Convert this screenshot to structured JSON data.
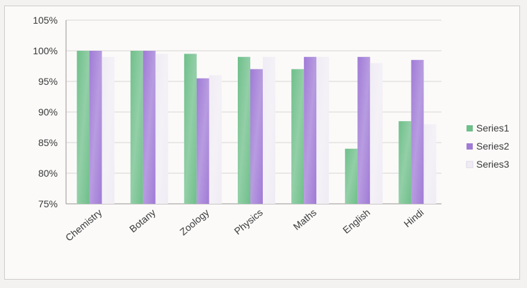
{
  "chart_data": {
    "type": "bar",
    "categories": [
      "Chemistry",
      "Botany",
      "Zoology",
      "Physics",
      "Maths",
      "English",
      "Hindi"
    ],
    "series": [
      {
        "name": "Series1",
        "values": [
          100,
          100,
          99.5,
          99,
          97,
          84,
          88.5
        ],
        "color": "#6fbf8a"
      },
      {
        "name": "Series2",
        "values": [
          100,
          100,
          95.5,
          97,
          99,
          99,
          98.5
        ],
        "color": "#a07bd6"
      },
      {
        "name": "Series3",
        "values": [
          99,
          99.5,
          96,
          99,
          99,
          98,
          88
        ],
        "color": "#f0ecf4"
      }
    ],
    "ylim": [
      75,
      105
    ],
    "yticks": [
      "105%",
      "100%",
      "95%",
      "90%",
      "85%",
      "80%",
      "75%"
    ],
    "ytick_values": [
      105,
      100,
      95,
      90,
      85,
      80,
      75
    ],
    "grid": true,
    "legend_position": "right",
    "title": "",
    "xlabel": "",
    "ylabel": ""
  }
}
